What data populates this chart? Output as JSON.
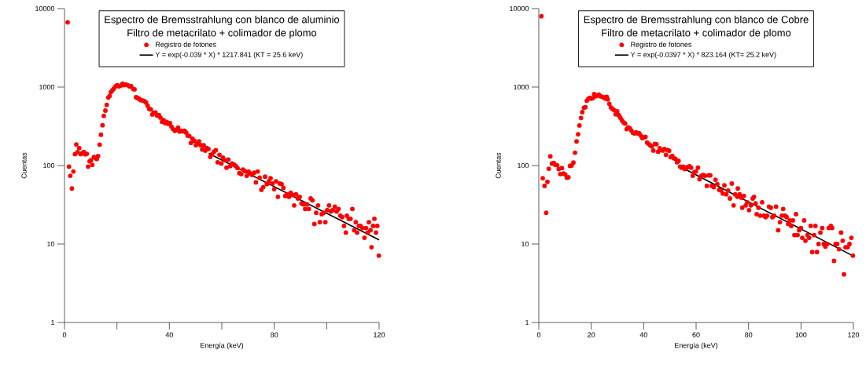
{
  "chart_data": [
    {
      "type": "scatter",
      "title": "Espectro de Bremsstrahlung con blanco de aluminio",
      "subtitle": "Filtro de metacrilato + colimador de plomo",
      "xlabel": "Energía (keV)",
      "ylabel": "Cuentas",
      "log": "y",
      "xlim": [
        0,
        120
      ],
      "ylim": [
        1,
        10000
      ],
      "xticks": [
        0,
        {
          "value": 20,
          "label": null
        },
        40,
        {
          "value": 60,
          "label": null
        },
        80,
        {
          "value": 100,
          "label": null
        },
        120
      ],
      "yticks": [
        1,
        10,
        100,
        1000,
        10000
      ],
      "legend": "top",
      "series": [
        {
          "name": "Registro de fotones",
          "color": "#ff0000",
          "marker": "circle",
          "x": [
            1.2,
            1.7,
            2.2,
            2.8,
            3.4,
            4.0,
            4.5,
            5.0,
            5.6,
            6.2,
            6.8,
            7.4,
            8.0,
            8.5,
            9.0,
            9.6,
            10.1,
            10.6,
            11.2,
            11.8,
            12.3,
            12.8,
            13.4,
            13.9,
            14.5,
            15.0,
            15.6,
            16.1,
            16.7,
            17.2,
            17.7,
            18.3,
            18.8,
            19.5,
            20.1,
            20.8,
            21.5,
            22.1,
            22.7,
            23.4,
            24.1,
            24.8,
            25.4,
            26.2,
            26.7,
            27.3,
            27.9,
            28.5,
            29.1,
            29.8,
            30.5,
            31.1,
            31.7,
            32.3,
            32.9,
            33.5,
            34.1,
            34.7,
            35.3,
            36.0,
            36.6,
            37.2,
            37.8,
            38.4,
            39.0,
            39.6,
            40.2,
            40.8,
            41.4,
            42.1,
            42.7,
            43.3,
            43.9,
            44.5,
            45.2,
            45.8,
            46.4,
            47.0,
            47.6,
            48.2,
            48.8,
            49.5,
            50.1,
            50.7,
            51.3,
            51.9,
            52.5,
            53.1,
            53.7,
            54.3,
            54.9,
            55.6,
            56.3,
            57.0,
            57.7,
            58.4,
            59.1,
            59.8,
            60.4,
            61.1,
            61.8,
            62.5,
            63.2,
            63.9,
            64.6,
            65.3,
            66.0,
            66.7,
            67.4,
            68.1,
            68.8,
            69.5,
            70.2,
            70.9,
            71.6,
            72.3,
            73.0,
            73.7,
            74.4,
            75.1,
            75.8,
            76.5,
            77.2,
            77.9,
            78.6,
            79.3,
            80.0,
            80.7,
            81.4,
            82.1,
            82.8,
            83.5,
            84.2,
            84.9,
            85.6,
            86.3,
            87.0,
            87.6,
            88.3,
            89.0,
            89.7,
            90.4,
            91.1,
            91.8,
            92.5,
            93.2,
            93.9,
            94.6,
            95.3,
            96.0,
            96.7,
            97.4,
            98.1,
            98.8,
            99.5,
            100.2,
            100.9,
            101.6,
            102.3,
            103.1,
            103.8,
            104.5,
            105.2,
            105.9,
            106.6,
            107.3,
            107.7,
            108.4,
            109.1,
            109.8,
            110.5,
            111.1,
            111.6,
            112.3,
            112.9,
            113.6,
            114.4,
            115.0,
            115.6,
            116.1,
            116.7,
            117.1,
            117.7,
            118.2,
            118.8,
            119.3,
            119.9
          ],
          "values": [
            6700,
            97,
            74,
            51,
            84,
            140,
            186,
            148,
            167,
            140,
            144,
            149,
            139,
            141,
            97,
            113,
            117,
            102,
            128,
            125,
            121,
            132,
            185,
            247,
            326,
            430,
            501,
            593,
            736,
            771,
            865,
            912,
            955,
            1023,
            1055,
            1023,
            1045,
            1105,
            1057,
            1078,
            1055,
            1023,
            1030,
            948,
            935,
            741,
            725,
            708,
            681,
            675,
            661,
            636,
            580,
            529,
            520,
            447,
            471,
            475,
            433,
            440,
            408,
            360,
            378,
            347,
            360,
            339,
            347,
            314,
            291,
            277,
            284,
            304,
            271,
            277,
            273,
            277,
            263,
            240,
            238,
            194,
            220,
            207,
            182,
            191,
            204,
            182,
            160,
            181,
            155,
            167,
            163,
            129,
            139,
            150,
            157,
            110,
            137,
            106,
            126,
            117,
            94,
            119,
            98,
            106,
            103,
            99,
            93,
            80,
            78,
            89,
            85,
            74,
            84,
            79,
            76,
            81,
            61,
            84,
            70,
            49,
            53,
            72,
            58,
            63,
            69,
            59,
            50,
            63,
            40,
            59,
            58,
            52,
            41,
            43,
            40,
            45,
            42,
            31,
            43,
            38,
            40,
            33,
            32,
            28,
            32,
            28,
            38,
            36,
            18,
            25,
            31,
            19,
            24,
            25,
            19,
            27,
            31,
            26,
            27,
            30,
            26,
            28,
            23,
            22,
            17,
            14,
            23,
            21,
            21,
            28,
            15,
            19,
            14,
            17,
            17,
            16,
            12,
            16,
            14,
            19,
            15,
            9.1,
            17,
            21,
            14,
            17,
            7.1
          ]
        },
        {
          "type": "line",
          "name": "Y = exp(-0.039 * X) * 1217.841  (KT = 25.6 keV)",
          "color": "#000000",
          "marker": "none",
          "line_style": "solid",
          "x": [
            55,
            120
          ],
          "values": [
            142.6,
            11.3
          ]
        }
      ]
    },
    {
      "type": "scatter",
      "title": "Espectro de Bremsstrahlung con blanco de Cobre",
      "subtitle": "Filtro de metacrilato + colimador de plomo",
      "xlabel": "Energía (keV)",
      "ylabel": "Cuentas",
      "log": "y",
      "xlim": [
        0,
        120
      ],
      "ylim": [
        1,
        10000
      ],
      "xticks": [
        0,
        20,
        40,
        60,
        80,
        100,
        120
      ],
      "yticks": [
        1,
        10,
        100,
        1000,
        10000
      ],
      "legend": "top",
      "series": [
        {
          "name": "Registro de fotones",
          "color": "#ff0000",
          "marker": "circle",
          "x": [
            1.0,
            1.5,
            2.2,
            2.8,
            3.3,
            3.8,
            4.4,
            5.0,
            5.7,
            6.3,
            7.0,
            7.6,
            8.2,
            8.8,
            9.4,
            10.1,
            10.7,
            11.3,
            11.9,
            12.5,
            13.2,
            13.8,
            14.4,
            15.0,
            15.5,
            16.1,
            16.6,
            17.2,
            17.8,
            18.3,
            18.9,
            19.5,
            20.0,
            20.6,
            21.1,
            21.7,
            22.3,
            22.9,
            23.5,
            24.1,
            24.7,
            25.3,
            25.9,
            26.3,
            26.9,
            27.5,
            28.1,
            28.7,
            29.3,
            29.9,
            30.5,
            31.1,
            31.7,
            32.3,
            32.9,
            33.5,
            34.1,
            34.7,
            35.3,
            35.9,
            36.5,
            37.1,
            37.7,
            38.3,
            38.9,
            39.5,
            40.1,
            40.7,
            41.3,
            41.9,
            42.5,
            43.1,
            43.7,
            44.3,
            44.9,
            45.5,
            46.1,
            46.7,
            47.3,
            47.9,
            48.5,
            49.1,
            49.7,
            50.3,
            50.9,
            51.5,
            52.1,
            52.7,
            53.3,
            53.9,
            54.5,
            55.1,
            55.7,
            56.3,
            56.9,
            57.5,
            58.1,
            58.7,
            59.3,
            59.9,
            60.7,
            61.3,
            62.0,
            62.7,
            63.4,
            64.1,
            64.8,
            65.4,
            66.0,
            66.7,
            67.4,
            68.1,
            68.8,
            69.5,
            70.2,
            70.8,
            71.5,
            72.2,
            72.9,
            73.6,
            74.3,
            74.9,
            75.7,
            75.9,
            76.6,
            77.3,
            77.6,
            78.2,
            78.9,
            79.5,
            80.2,
            80.9,
            81.6,
            82.1,
            82.7,
            83.1,
            83.8,
            84.4,
            85.2,
            85.8,
            86.5,
            87.1,
            87.8,
            88.5,
            89.1,
            89.8,
            90.5,
            91.3,
            92.0,
            92.7,
            93.2,
            93.9,
            94.5,
            95.1,
            95.7,
            96.3,
            96.9,
            97.5,
            98.1,
            98.7,
            99.3,
            100.0,
            100.5,
            101.2,
            101.7,
            102.5,
            103.1,
            103.7,
            104.3,
            105.0,
            105.5,
            106.1,
            106.7,
            107.4,
            108.1,
            108.7,
            109.3,
            110.0,
            110.6,
            111.4,
            111.9,
            112.6,
            113.2,
            113.8,
            114.5,
            115.3,
            115.9,
            116.4,
            117.0,
            117.8,
            118.5,
            119.2,
            119.8
          ],
          "values": [
            8000,
            69,
            55,
            25,
            62,
            91,
            131,
            106,
            108,
            102,
            101,
            90,
            78,
            93,
            79,
            77,
            70,
            71,
            99,
            100,
            109,
            146,
            203,
            251,
            324,
            404,
            479,
            545,
            555,
            671,
            708,
            730,
            712,
            722,
            813,
            765,
            782,
            800,
            765,
            753,
            741,
            716,
            753,
            697,
            612,
            550,
            529,
            509,
            450,
            490,
            440,
            408,
            378,
            355,
            343,
            291,
            307,
            300,
            280,
            261,
            257,
            265,
            257,
            257,
            241,
            224,
            229,
            232,
            196,
            189,
            181,
            175,
            155,
            189,
            187,
            150,
            166,
            158,
            155,
            163,
            137,
            158,
            154,
            128,
            133,
            124,
            122,
            110,
            115,
            97,
            94,
            97,
            90,
            94,
            96,
            98,
            94,
            74,
            82,
            84,
            94,
            67,
            74,
            76,
            74,
            55,
            75,
            75,
            55,
            53,
            66,
            58,
            49,
            48,
            44,
            56,
            43,
            48,
            38,
            59,
            31,
            43,
            40,
            51,
            43,
            39,
            29,
            41,
            31,
            34,
            27,
            31,
            38,
            40,
            33,
            24,
            29,
            23,
            34,
            23,
            22,
            23,
            30,
            29,
            22,
            23,
            30,
            15,
            19,
            23,
            28,
            23,
            22,
            18,
            20,
            17,
            20,
            13,
            24,
            13,
            15,
            16,
            12,
            20,
            11,
            13,
            12,
            17,
            7.9,
            13,
            17,
            7.9,
            10,
            14,
            16,
            10,
            9.3,
            10,
            16,
            17,
            16,
            6.1,
            10,
            10,
            8.6,
            14,
            11,
            4.1,
            9.1,
            9.1,
            10,
            12,
            7.1
          ]
        },
        {
          "type": "line",
          "name": "Y = exp(-0.0397 * X) * 823.164 (KT= 25.2 keV)",
          "color": "#000000",
          "marker": "none",
          "line_style": "solid",
          "x": [
            55,
            120
          ],
          "values": [
            92.7,
            7.02
          ]
        }
      ]
    }
  ]
}
